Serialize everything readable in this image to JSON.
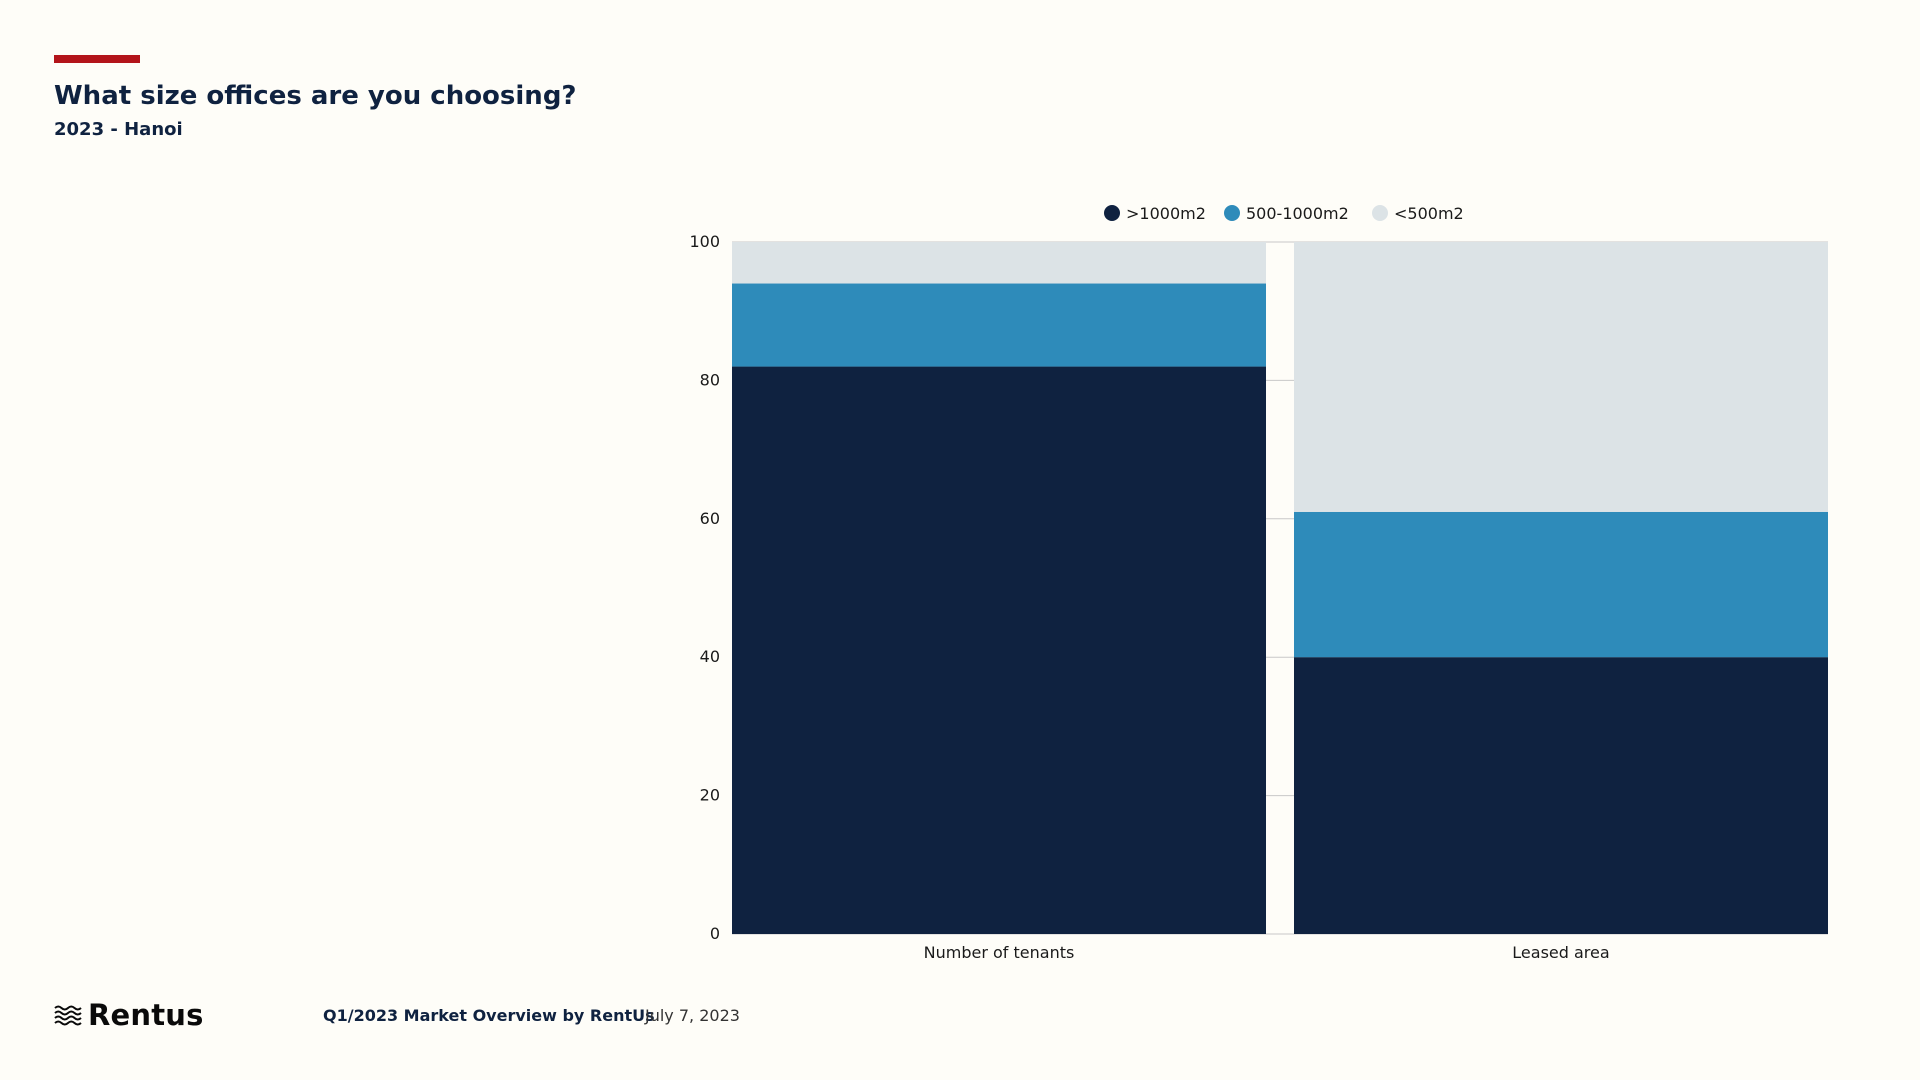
{
  "header": {
    "title": "What size offices are you choosing?",
    "subtitle": "2023 - Hanoi",
    "accent_color": "#b3141a"
  },
  "chart_data": {
    "type": "bar",
    "stacked": true,
    "categories": [
      "Number of tenants",
      "Leased area"
    ],
    "series": [
      {
        "name": ">1000m2",
        "color": "#0f2240",
        "values": [
          82,
          40
        ]
      },
      {
        "name": "500-1000m2",
        "color": "#2e8bba",
        "values": [
          12,
          21
        ]
      },
      {
        "name": "<500m2",
        "color": "#dce3e6",
        "values": [
          6,
          39
        ]
      }
    ],
    "ylim": [
      0,
      100
    ],
    "yticks": [
      0,
      20,
      40,
      60,
      80,
      100
    ],
    "grid": true,
    "legend_position": "top-center"
  },
  "footer": {
    "logo_text": "Rentus",
    "logo_icon": "waves-icon",
    "report_label": "Q1/2023 Market Overview by RentUs",
    "date": "July 7, 2023"
  }
}
